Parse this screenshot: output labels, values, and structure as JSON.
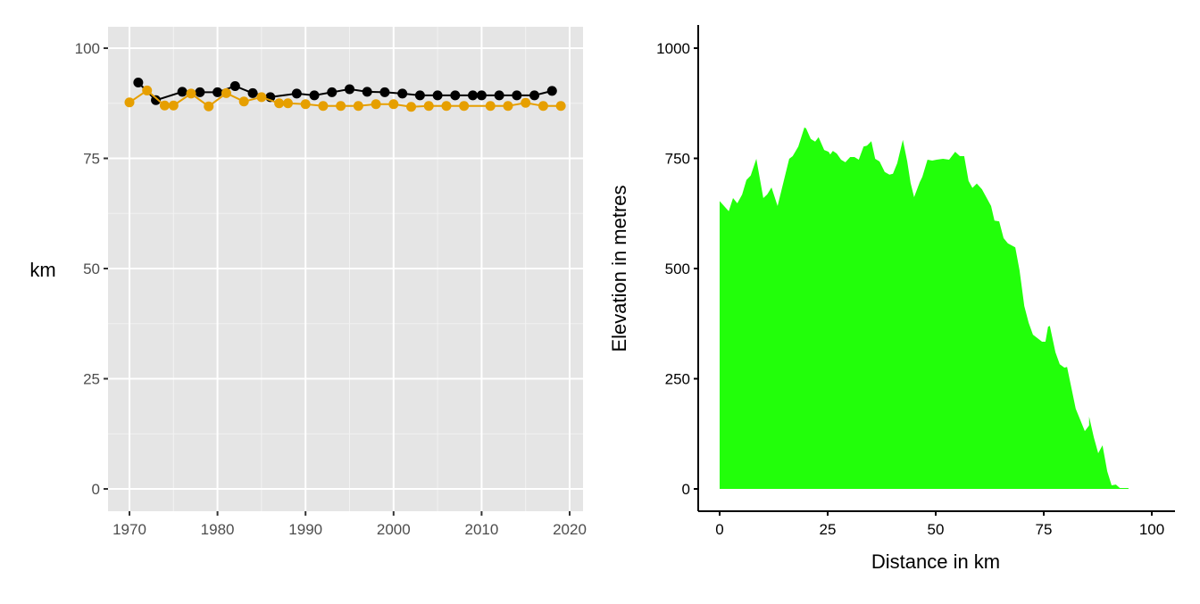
{
  "chart_data": [
    {
      "type": "line",
      "panel": "left",
      "title": "",
      "xlabel": "",
      "ylabel": "km",
      "xlim": [
        1967.5,
        2021.5
      ],
      "ylim": [
        -5,
        105
      ],
      "x_ticks": [
        1970,
        1980,
        1990,
        2000,
        2010,
        2020
      ],
      "x_tick_labels": [
        "1970",
        "1980",
        "1990",
        "2000",
        "2010",
        "2020"
      ],
      "y_ticks": [
        0,
        25,
        50,
        75,
        100
      ],
      "y_tick_labels": [
        "0",
        "25",
        "50",
        "75",
        "100"
      ],
      "grid": true,
      "background": "#e5e5e5",
      "legend": null,
      "series": [
        {
          "name": "black-series",
          "color": "#000000",
          "points": [
            [
              1971,
              92.2
            ],
            [
              1973,
              88.2
            ],
            [
              1976,
              90.1
            ],
            [
              1978,
              90.0
            ],
            [
              1980,
              90.0
            ],
            [
              1982,
              91.4
            ],
            [
              1984,
              89.8
            ],
            [
              1986,
              88.9
            ],
            [
              1989,
              89.7
            ],
            [
              1991,
              89.3
            ],
            [
              1993,
              90.0
            ],
            [
              1995,
              90.7
            ],
            [
              1997,
              90.1
            ],
            [
              1999,
              90.0
            ],
            [
              2001,
              89.7
            ],
            [
              2003,
              89.3
            ],
            [
              2005,
              89.3
            ],
            [
              2007,
              89.3
            ],
            [
              2009,
              89.3
            ],
            [
              2010,
              89.3
            ],
            [
              2012,
              89.3
            ],
            [
              2014,
              89.3
            ],
            [
              2016,
              89.3
            ],
            [
              2018,
              90.3
            ]
          ]
        },
        {
          "name": "orange-series",
          "color": "#e69f00",
          "points": [
            [
              1970,
              87.7
            ],
            [
              1972,
              90.4
            ],
            [
              1974,
              87.0
            ],
            [
              1975,
              87.0
            ],
            [
              1977,
              89.7
            ],
            [
              1979,
              86.8
            ],
            [
              1981,
              89.8
            ],
            [
              1983,
              87.9
            ],
            [
              1985,
              88.9
            ],
            [
              1987,
              87.5
            ],
            [
              1988,
              87.5
            ],
            [
              1990,
              87.3
            ],
            [
              1992,
              86.9
            ],
            [
              1994,
              86.9
            ],
            [
              1996,
              86.9
            ],
            [
              1998,
              87.3
            ],
            [
              2000,
              87.3
            ],
            [
              2002,
              86.7
            ],
            [
              2004,
              86.9
            ],
            [
              2006,
              86.9
            ],
            [
              2008,
              86.9
            ],
            [
              2011,
              86.9
            ],
            [
              2013,
              86.9
            ],
            [
              2015,
              87.6
            ],
            [
              2017,
              86.9
            ],
            [
              2019,
              86.9
            ]
          ]
        }
      ]
    },
    {
      "type": "area",
      "panel": "right",
      "title": "",
      "xlabel": "Distance in km",
      "ylabel": "Elevation in metres",
      "xlim": [
        -5,
        105
      ],
      "ylim": [
        -50,
        1050
      ],
      "x_ticks": [
        0,
        25,
        50,
        75,
        100
      ],
      "x_tick_labels": [
        "0",
        "25",
        "50",
        "75",
        "100"
      ],
      "y_ticks": [
        0,
        250,
        500,
        750,
        1000
      ],
      "y_tick_labels": [
        "0",
        "250",
        "500",
        "750",
        "1000"
      ],
      "grid": false,
      "legend": null,
      "fill_color": "#22ff0a",
      "points": [
        [
          0,
          653
        ],
        [
          2.1,
          630
        ],
        [
          3.1,
          660
        ],
        [
          4.1,
          648
        ],
        [
          5.2,
          668
        ],
        [
          6.2,
          701
        ],
        [
          7.2,
          711
        ],
        [
          8.5,
          749
        ],
        [
          10.1,
          660
        ],
        [
          11.0,
          668
        ],
        [
          12.0,
          684
        ],
        [
          13.4,
          642
        ],
        [
          16.1,
          749
        ],
        [
          16.9,
          755
        ],
        [
          18.2,
          777
        ],
        [
          19.6,
          820
        ],
        [
          20.0,
          818
        ],
        [
          21.1,
          794
        ],
        [
          22.1,
          788
        ],
        [
          22.9,
          798
        ],
        [
          24.2,
          769
        ],
        [
          25.2,
          765
        ],
        [
          25.6,
          759
        ],
        [
          26.2,
          767
        ],
        [
          27.1,
          761
        ],
        [
          28.1,
          747
        ],
        [
          29.1,
          741
        ],
        [
          30.2,
          753
        ],
        [
          31.2,
          753
        ],
        [
          32.2,
          747
        ],
        [
          33.3,
          777
        ],
        [
          34.1,
          779
        ],
        [
          35.1,
          789
        ],
        [
          36.0,
          749
        ],
        [
          37.0,
          743
        ],
        [
          38.2,
          719
        ],
        [
          39.3,
          713
        ],
        [
          40.1,
          715
        ],
        [
          41.1,
          739
        ],
        [
          42.4,
          792
        ],
        [
          43.4,
          743
        ],
        [
          44.2,
          694
        ],
        [
          45.0,
          662
        ],
        [
          46.3,
          696
        ],
        [
          46.9,
          708
        ],
        [
          48.1,
          747
        ],
        [
          49.2,
          745
        ],
        [
          50.2,
          747
        ],
        [
          48.1,
          747
        ],
        [
          50.2,
          747
        ]
      ],
      "points_clean": [
        [
          0,
          653
        ],
        [
          2.1,
          630
        ],
        [
          3.1,
          660
        ],
        [
          4.1,
          648
        ],
        [
          5.2,
          668
        ],
        [
          6.2,
          701
        ],
        [
          7.2,
          711
        ],
        [
          8.5,
          749
        ],
        [
          10.1,
          660
        ],
        [
          11.0,
          668
        ],
        [
          12.0,
          684
        ],
        [
          13.4,
          642
        ],
        [
          16.1,
          749
        ],
        [
          16.9,
          755
        ],
        [
          18.2,
          777
        ],
        [
          19.6,
          820
        ],
        [
          20.0,
          818
        ],
        [
          21.1,
          794
        ],
        [
          22.1,
          788
        ],
        [
          22.9,
          798
        ],
        [
          24.2,
          769
        ],
        [
          25.2,
          765
        ],
        [
          25.6,
          759
        ],
        [
          26.2,
          767
        ],
        [
          27.1,
          761
        ],
        [
          28.1,
          747
        ],
        [
          29.1,
          741
        ],
        [
          30.2,
          753
        ],
        [
          31.2,
          753
        ],
        [
          32.2,
          747
        ],
        [
          33.3,
          777
        ],
        [
          34.1,
          779
        ],
        [
          35.1,
          789
        ],
        [
          36.0,
          749
        ],
        [
          37.0,
          743
        ],
        [
          38.2,
          719
        ],
        [
          39.3,
          713
        ],
        [
          40.1,
          715
        ],
        [
          41.1,
          739
        ],
        [
          42.4,
          792
        ],
        [
          43.4,
          743
        ],
        [
          44.2,
          694
        ],
        [
          45.0,
          662
        ],
        [
          46.3,
          696
        ],
        [
          46.9,
          708
        ],
        [
          48.1,
          747
        ],
        [
          49.2,
          745
        ],
        [
          50.2,
          747
        ],
        [
          51.7,
          749
        ],
        [
          53.1,
          747
        ],
        [
          54.5,
          765
        ],
        [
          55.6,
          755
        ],
        [
          56.6,
          755
        ],
        [
          57.6,
          699
        ],
        [
          58.5,
          683
        ],
        [
          59.5,
          693
        ],
        [
          60.7,
          680
        ],
        [
          62.8,
          642
        ],
        [
          63.6,
          609
        ],
        [
          64.7,
          607
        ],
        [
          65.7,
          569
        ],
        [
          66.7,
          557
        ],
        [
          68.4,
          548
        ],
        [
          69.4,
          496
        ],
        [
          70.5,
          415
        ],
        [
          71.5,
          377
        ],
        [
          72.5,
          350
        ],
        [
          74.6,
          334
        ],
        [
          75.4,
          334
        ],
        [
          76.0,
          368
        ],
        [
          76.4,
          370
        ],
        [
          77.7,
          310
        ],
        [
          78.7,
          283
        ],
        [
          79.8,
          275
        ],
        [
          80.4,
          277
        ],
        [
          81.4,
          229
        ],
        [
          82.4,
          182
        ],
        [
          84.5,
          131
        ],
        [
          85.5,
          144
        ],
        [
          85.5,
          164
        ],
        [
          86.6,
          117
        ],
        [
          87.6,
          81
        ],
        [
          88.6,
          99
        ],
        [
          89.7,
          40
        ],
        [
          90.7,
          8
        ],
        [
          91.7,
          10
        ],
        [
          92.6,
          2
        ],
        [
          94.6,
          2
        ]
      ]
    }
  ]
}
